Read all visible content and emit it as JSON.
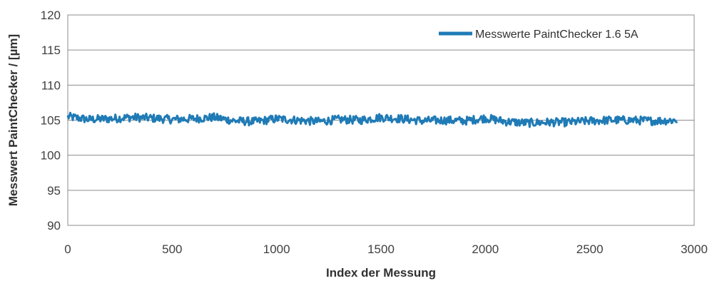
{
  "chart_data": {
    "type": "line",
    "xlabel": "Index der Messung",
    "ylabel": "Messwert PaintChecker / [µm]",
    "xlim": [
      0,
      3000
    ],
    "ylim": [
      90,
      120
    ],
    "x_ticks": [
      "0",
      "500",
      "1000",
      "1500",
      "2000",
      "2500",
      "3000"
    ],
    "y_ticks": [
      "90",
      "95",
      "100",
      "105",
      "110",
      "115",
      "120"
    ],
    "x_tick_values": [
      0,
      500,
      1000,
      1500,
      2000,
      2500,
      3000
    ],
    "y_tick_values": [
      90,
      95,
      100,
      105,
      110,
      115,
      120
    ],
    "grid": "horizontal",
    "legend_position": "top-right",
    "series": [
      {
        "name": "Messwerte PaintChecker 1.6 5A",
        "color": "#1f7bb6",
        "x_range": [
          0,
          2920
        ],
        "trend": {
          "x": [
            0,
            100,
            200,
            300,
            400,
            500,
            600,
            700,
            800,
            900,
            1000,
            1100,
            1200,
            1300,
            1400,
            1500,
            1600,
            1700,
            1800,
            1900,
            2000,
            2100,
            2200,
            2300,
            2400,
            2500,
            2600,
            2700,
            2800,
            2920
          ],
          "y": [
            105.5,
            105.1,
            105.2,
            105.4,
            105.3,
            105.1,
            105.2,
            105.4,
            104.9,
            104.8,
            105.2,
            105.0,
            104.8,
            105.1,
            105.0,
            105.4,
            105.2,
            104.9,
            105.0,
            104.9,
            105.3,
            104.8,
            104.6,
            104.7,
            104.7,
            104.9,
            105.0,
            105.0,
            104.9,
            105.0
          ]
        },
        "noise_amplitude": 0.6
      }
    ]
  }
}
